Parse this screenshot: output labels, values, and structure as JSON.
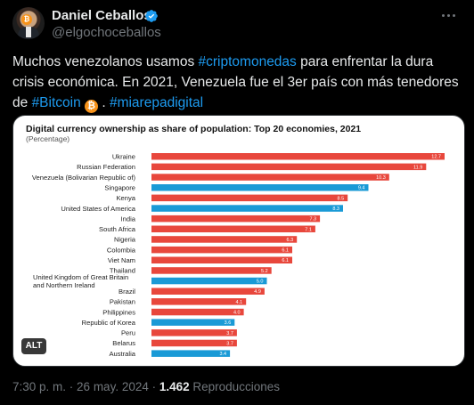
{
  "author": {
    "name": "Daniel Ceballos",
    "handle": "@elgochoceballos"
  },
  "tweet": {
    "text_1": "Muchos venezolanos usamos ",
    "hashtag_1": "#criptomonedas",
    "text_2": " para enfrentar la dura crisis económica. En 2021, Venezuela fue el 3er país con más tenedores de ",
    "hashtag_2": "#Bitcoin",
    "text_3": " . ",
    "hashtag_3": "#miarepadigital"
  },
  "media": {
    "alt_label": "ALT"
  },
  "meta": {
    "time": "7:30 p. m.",
    "separator": " · ",
    "date": "26 may. 2024",
    "views_count": "1.462",
    "views_label": " Reproducciones"
  },
  "colors": {
    "accent": "#1d9bf0",
    "bar_red": "#e8473c",
    "bar_blue": "#1a9ad6",
    "bitcoin": "#f7931a"
  },
  "chart_data": {
    "type": "bar",
    "orientation": "horizontal",
    "title": "Digital currency ownership as share of population: Top 20 economies, 2021",
    "subtitle": "(Percentage)",
    "categories": [
      "Ukraine",
      "Russian Federation",
      "Venezuela (Bolivarian Republic of)",
      "Singapore",
      "Kenya",
      "United States of America",
      "India",
      "South Africa",
      "Nigeria",
      "Colombia",
      "Viet Nam",
      "Thailand",
      "United Kingdom of Great Britain and Northern Ireland",
      "Brazil",
      "Pakistan",
      "Philippines",
      "Republic of Korea",
      "Peru",
      "Belarus",
      "Australia"
    ],
    "values": [
      12.7,
      11.9,
      10.3,
      9.4,
      8.5,
      8.3,
      7.3,
      7.1,
      6.3,
      6.1,
      6.1,
      5.2,
      5.0,
      4.9,
      4.1,
      4.0,
      3.6,
      3.7,
      3.7,
      3.4
    ],
    "value_labels": [
      "12.7",
      "11.9",
      "10.3",
      "9.4",
      "8.5",
      "8.3",
      "7.3",
      "7.1",
      "6.3",
      "6.1",
      "6.1",
      "5.2",
      "5.0",
      "4.9",
      "4.1",
      "4.0",
      "3.6",
      "3.7",
      "3.7",
      "3.4"
    ],
    "highlight": [
      false,
      false,
      false,
      true,
      false,
      true,
      false,
      false,
      false,
      false,
      false,
      false,
      true,
      false,
      false,
      false,
      true,
      false,
      false,
      true
    ],
    "xlim": [
      0,
      12.7
    ],
    "grid": false,
    "legend": "none"
  }
}
